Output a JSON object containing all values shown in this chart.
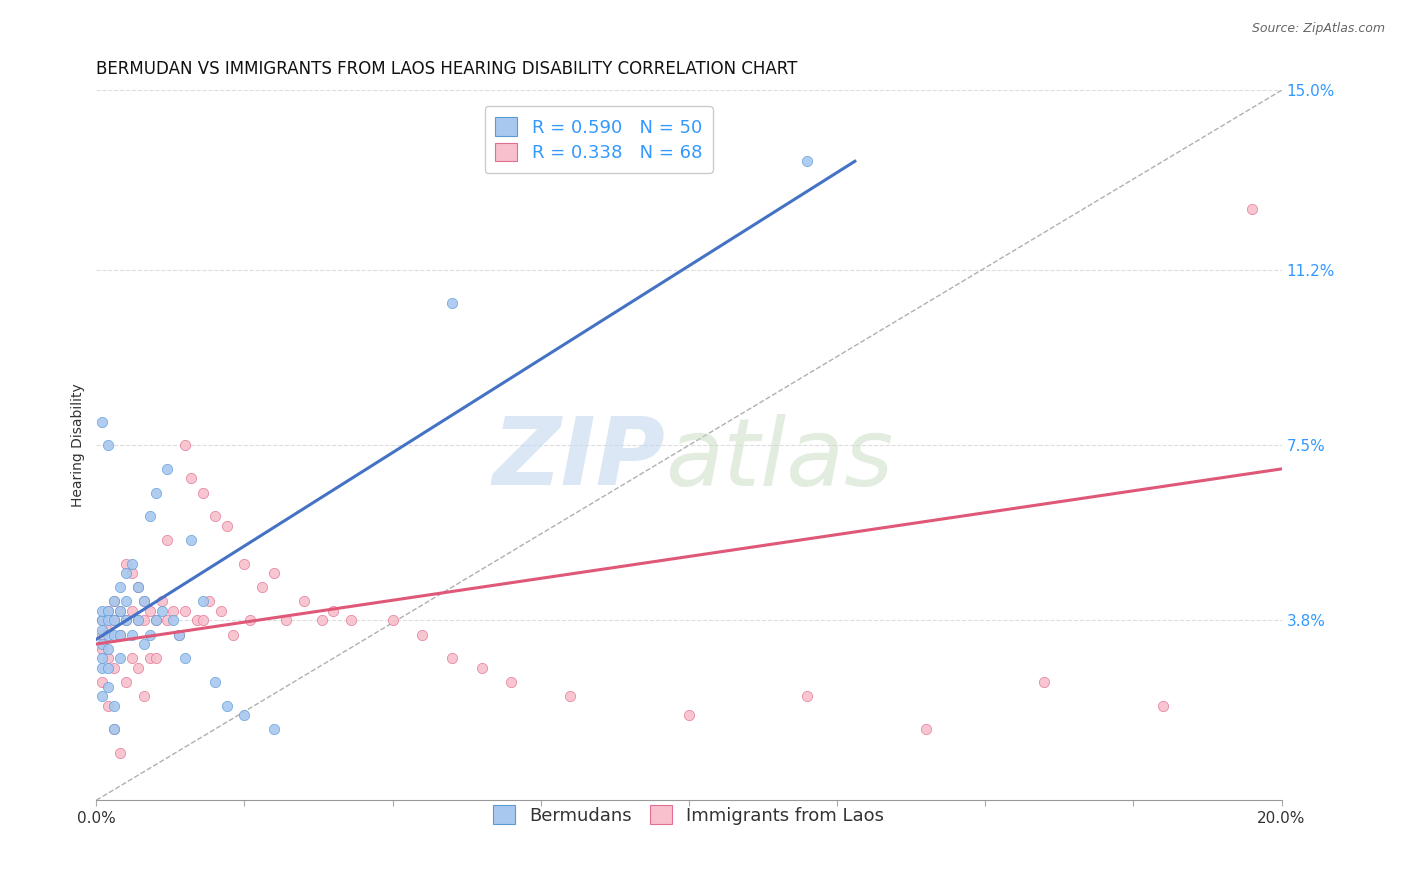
{
  "title": "BERMUDAN VS IMMIGRANTS FROM LAOS HEARING DISABILITY CORRELATION CHART",
  "source": "Source: ZipAtlas.com",
  "ylabel": "Hearing Disability",
  "xlim": [
    0.0,
    0.2
  ],
  "ylim": [
    0.0,
    0.15
  ],
  "diagonal_line": {
    "x": [
      0.0,
      0.2
    ],
    "y": [
      0.0,
      0.15
    ]
  },
  "bermudans": {
    "R": 0.59,
    "N": 50,
    "color": "#a8c8f0",
    "edge_color": "#5b9bd5",
    "line_color": "#4472c4",
    "trend_x": [
      0.0,
      0.128
    ],
    "trend_y": [
      0.034,
      0.135
    ],
    "scatter_x": [
      0.001,
      0.001,
      0.001,
      0.001,
      0.001,
      0.001,
      0.001,
      0.002,
      0.002,
      0.002,
      0.002,
      0.002,
      0.002,
      0.003,
      0.003,
      0.003,
      0.003,
      0.003,
      0.004,
      0.004,
      0.004,
      0.004,
      0.005,
      0.005,
      0.005,
      0.006,
      0.006,
      0.007,
      0.007,
      0.008,
      0.008,
      0.009,
      0.009,
      0.01,
      0.01,
      0.011,
      0.012,
      0.013,
      0.014,
      0.015,
      0.016,
      0.018,
      0.02,
      0.022,
      0.025,
      0.03,
      0.001,
      0.002,
      0.06,
      0.12
    ],
    "scatter_y": [
      0.038,
      0.036,
      0.04,
      0.033,
      0.03,
      0.028,
      0.022,
      0.04,
      0.038,
      0.035,
      0.032,
      0.028,
      0.024,
      0.042,
      0.038,
      0.035,
      0.02,
      0.015,
      0.045,
      0.04,
      0.035,
      0.03,
      0.048,
      0.042,
      0.038,
      0.05,
      0.035,
      0.045,
      0.038,
      0.042,
      0.033,
      0.06,
      0.035,
      0.065,
      0.038,
      0.04,
      0.07,
      0.038,
      0.035,
      0.03,
      0.055,
      0.042,
      0.025,
      0.02,
      0.018,
      0.015,
      0.08,
      0.075,
      0.105,
      0.135
    ]
  },
  "laos": {
    "R": 0.338,
    "N": 68,
    "color": "#f8c0cc",
    "edge_color": "#e07090",
    "line_color": "#e05878",
    "trend_x": [
      0.0,
      0.2
    ],
    "trend_y": [
      0.033,
      0.07
    ],
    "scatter_x": [
      0.001,
      0.001,
      0.001,
      0.001,
      0.002,
      0.002,
      0.002,
      0.002,
      0.003,
      0.003,
      0.003,
      0.003,
      0.004,
      0.004,
      0.004,
      0.005,
      0.005,
      0.005,
      0.006,
      0.006,
      0.006,
      0.007,
      0.007,
      0.007,
      0.008,
      0.008,
      0.008,
      0.009,
      0.009,
      0.01,
      0.01,
      0.011,
      0.012,
      0.012,
      0.013,
      0.014,
      0.015,
      0.015,
      0.016,
      0.017,
      0.018,
      0.018,
      0.019,
      0.02,
      0.021,
      0.022,
      0.023,
      0.025,
      0.026,
      0.028,
      0.03,
      0.032,
      0.035,
      0.038,
      0.04,
      0.043,
      0.05,
      0.055,
      0.06,
      0.065,
      0.07,
      0.08,
      0.1,
      0.12,
      0.14,
      0.16,
      0.18,
      0.195
    ],
    "scatter_y": [
      0.038,
      0.035,
      0.032,
      0.025,
      0.04,
      0.036,
      0.03,
      0.02,
      0.042,
      0.038,
      0.028,
      0.015,
      0.04,
      0.035,
      0.01,
      0.05,
      0.038,
      0.025,
      0.048,
      0.04,
      0.03,
      0.045,
      0.038,
      0.028,
      0.042,
      0.038,
      0.022,
      0.04,
      0.03,
      0.038,
      0.03,
      0.042,
      0.055,
      0.038,
      0.04,
      0.035,
      0.075,
      0.04,
      0.068,
      0.038,
      0.065,
      0.038,
      0.042,
      0.06,
      0.04,
      0.058,
      0.035,
      0.05,
      0.038,
      0.045,
      0.048,
      0.038,
      0.042,
      0.038,
      0.04,
      0.038,
      0.038,
      0.035,
      0.03,
      0.028,
      0.025,
      0.022,
      0.018,
      0.022,
      0.015,
      0.025,
      0.02,
      0.125
    ]
  },
  "watermark_zip": "ZIP",
  "watermark_atlas": "atlas",
  "background_color": "#ffffff",
  "grid_color": "#dddddd",
  "title_fontsize": 12,
  "axis_label_fontsize": 10,
  "tick_fontsize": 11,
  "legend_fontsize": 13,
  "ytick_positions": [
    0.0,
    0.038,
    0.075,
    0.112,
    0.15
  ],
  "ytick_labels": [
    "",
    "3.8%",
    "7.5%",
    "11.2%",
    "15.0%"
  ]
}
